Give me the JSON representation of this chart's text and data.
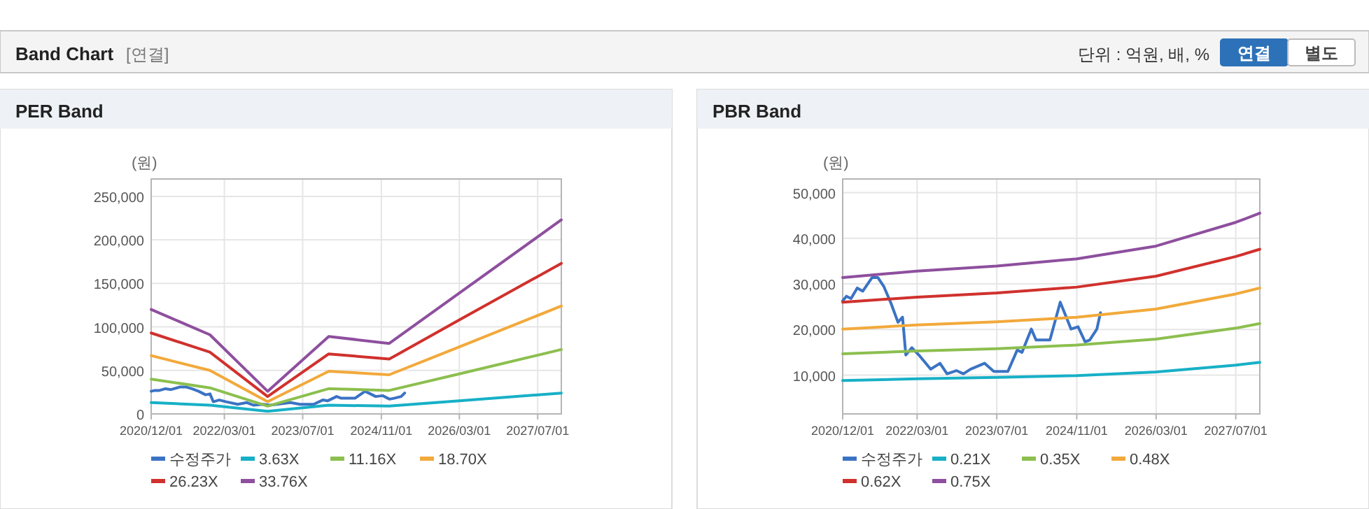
{
  "chart_data": [
    {
      "type": "other",
      "title": "Band Chart",
      "subtitle": "[연결]",
      "annotations": [
        "단위 : 억원, 배, %",
        "연결",
        "별도"
      ]
    },
    {
      "type": "line",
      "title": "PER Band",
      "ylabel": "(원)",
      "xlim": [
        "2020-12-01",
        "2027-11-25"
      ],
      "ylim": [
        0,
        270000
      ],
      "xticks": [
        {
          "value": "2020-12-01",
          "label": "2020/12/01"
        },
        {
          "value": "2022-03-01",
          "label": "2022/03/01"
        },
        {
          "value": "2023-07-01",
          "label": "2023/07/01"
        },
        {
          "value": "2024-11-01",
          "label": "2024/11/01"
        },
        {
          "value": "2026-03-01",
          "label": "2026/03/01"
        },
        {
          "value": "2027-07-01",
          "label": "2027/07/01"
        }
      ],
      "yticks": [
        0,
        {
          "value": 50000,
          "label": "50,000"
        },
        {
          "value": 100000,
          "label": "100,000"
        },
        {
          "value": 150000,
          "label": "150,000"
        },
        {
          "value": 200000,
          "label": "200,000"
        },
        {
          "value": 250000,
          "label": "250,000"
        }
      ],
      "grid": true,
      "legend": "bottom",
      "marker": "none",
      "line_style": "solid",
      "series": [
        {
          "name": "수정주가",
          "color": "#3b73c4",
          "x": [
            "2020-12-01",
            "2020-12-24",
            "2021-01-21",
            "2021-02-28",
            "2021-04-03",
            "2021-05-30",
            "2021-07-04",
            "2021-08-10",
            "2021-09-22",
            "2021-11-04",
            "2021-12-02",
            "2021-12-22",
            "2022-01-28",
            "2022-03-12",
            "2022-05-23",
            "2022-07-19",
            "2022-08-31",
            "2022-10-27",
            "2022-12-09",
            "2023-01-21",
            "2023-04-17",
            "2023-06-13",
            "2023-09-07",
            "2023-11-03",
            "2023-12-02",
            "2024-01-28",
            "2024-02-26",
            "2024-05-21",
            "2024-07-23",
            "2024-09-27",
            "2024-11-09",
            "2024-12-22",
            "2025-01-19",
            "2025-03-04",
            "2025-03-26"
          ],
          "values": [
            26000,
            27000,
            27000,
            29000,
            28000,
            31000,
            31000,
            29000,
            26000,
            22000,
            23000,
            14000,
            16000,
            14000,
            11000,
            13000,
            10000,
            11000,
            10000,
            11000,
            13000,
            11000,
            11000,
            16000,
            15000,
            20000,
            18000,
            18000,
            26000,
            20000,
            21000,
            17000,
            18000,
            20000,
            24000
          ]
        },
        {
          "name": "3.63X",
          "color": "#17b0c7",
          "x": [
            "2020-12-01",
            "2021-12-01",
            "2022-11-25",
            "2023-12-10",
            "2024-12-20",
            "2026-03-01",
            "2027-11-25"
          ],
          "values": [
            13000,
            10000,
            3000,
            10000,
            9000,
            15000,
            24000
          ]
        },
        {
          "name": "11.16X",
          "color": "#8cbf4f",
          "x": [
            "2020-12-01",
            "2021-12-01",
            "2022-11-25",
            "2023-12-10",
            "2024-12-20",
            "2026-03-01",
            "2027-11-25"
          ],
          "values": [
            40000,
            30000,
            9000,
            29000,
            27000,
            46000,
            74000
          ]
        },
        {
          "name": "18.70X",
          "color": "#f2a93b",
          "x": [
            "2020-12-01",
            "2021-12-01",
            "2022-11-25",
            "2023-12-10",
            "2024-12-20",
            "2026-03-01",
            "2027-11-25"
          ],
          "values": [
            67000,
            50000,
            14000,
            49000,
            45000,
            77000,
            124000
          ]
        },
        {
          "name": "26.23X",
          "color": "#d0312d",
          "x": [
            "2020-12-01",
            "2021-12-01",
            "2022-11-25",
            "2023-12-10",
            "2024-12-20",
            "2026-03-01",
            "2027-11-25"
          ],
          "values": [
            93000,
            71000,
            20000,
            69000,
            63000,
            108000,
            173000
          ]
        },
        {
          "name": "33.76X",
          "color": "#8e4f9e",
          "x": [
            "2020-12-01",
            "2021-12-01",
            "2022-11-25",
            "2023-12-10",
            "2024-12-20",
            "2026-03-01",
            "2027-11-25"
          ],
          "values": [
            120000,
            91000,
            26000,
            89000,
            81000,
            139000,
            223000
          ]
        }
      ]
    },
    {
      "type": "line",
      "title": "PBR Band",
      "ylabel": "(원)",
      "xlim": [
        "2020-12-01",
        "2027-11-25"
      ],
      "ylim": [
        1500,
        53000
      ],
      "xticks": [
        {
          "value": "2020-12-01",
          "label": "2020/12/01"
        },
        {
          "value": "2022-03-01",
          "label": "2022/03/01"
        },
        {
          "value": "2023-07-01",
          "label": "2023/07/01"
        },
        {
          "value": "2024-11-01",
          "label": "2024/11/01"
        },
        {
          "value": "2026-03-01",
          "label": "2026/03/01"
        },
        {
          "value": "2027-07-01",
          "label": "2027/07/01"
        }
      ],
      "yticks": [
        {
          "value": 10000,
          "label": "10,000"
        },
        {
          "value": 20000,
          "label": "20,000"
        },
        {
          "value": 30000,
          "label": "30,000"
        },
        {
          "value": 40000,
          "label": "40,000"
        },
        {
          "value": 50000,
          "label": "50,000"
        }
      ],
      "grid": true,
      "legend": "bottom",
      "marker": "none",
      "line_style": "solid",
      "series": [
        {
          "name": "수정주가",
          "color": "#3b73c4",
          "x": [
            "2020-12-01",
            "2020-12-24",
            "2021-01-21",
            "2021-02-28",
            "2021-04-03",
            "2021-05-30",
            "2021-07-04",
            "2021-08-10",
            "2021-09-22",
            "2021-11-04",
            "2021-12-02",
            "2021-12-22",
            "2022-01-28",
            "2022-03-12",
            "2022-05-23",
            "2022-07-19",
            "2022-08-31",
            "2022-10-27",
            "2022-12-09",
            "2023-01-21",
            "2023-04-17",
            "2023-06-13",
            "2023-09-07",
            "2023-11-03",
            "2023-12-02",
            "2024-01-28",
            "2024-02-26",
            "2024-05-21",
            "2024-07-23",
            "2024-09-27",
            "2024-11-09",
            "2024-12-22",
            "2025-01-19",
            "2025-03-04",
            "2025-03-26"
          ],
          "values": [
            26300,
            27300,
            26800,
            29100,
            28400,
            31400,
            31400,
            29400,
            25800,
            21600,
            22700,
            14400,
            16000,
            14400,
            11300,
            12600,
            10300,
            11000,
            10300,
            11300,
            12600,
            10800,
            10800,
            15500,
            15000,
            20100,
            17700,
            17700,
            26000,
            20100,
            20600,
            17300,
            17700,
            20100,
            23700
          ]
        },
        {
          "name": "0.21X",
          "color": "#17b0c7",
          "x": [
            "2020-12-01",
            "2022-03-01",
            "2023-07-01",
            "2024-11-01",
            "2026-03-01",
            "2027-07-01",
            "2027-11-25"
          ],
          "values": [
            8800,
            9200,
            9500,
            9900,
            10700,
            12200,
            12800
          ]
        },
        {
          "name": "0.35X",
          "color": "#8cbf4f",
          "x": [
            "2020-12-01",
            "2022-03-01",
            "2023-07-01",
            "2024-11-01",
            "2026-03-01",
            "2027-07-01",
            "2027-11-25"
          ],
          "values": [
            14700,
            15300,
            15800,
            16600,
            17900,
            20300,
            21300
          ]
        },
        {
          "name": "0.48X",
          "color": "#f2a93b",
          "x": [
            "2020-12-01",
            "2022-03-01",
            "2023-07-01",
            "2024-11-01",
            "2026-03-01",
            "2027-07-01",
            "2027-11-25"
          ],
          "values": [
            20100,
            21000,
            21700,
            22700,
            24500,
            27800,
            29100
          ]
        },
        {
          "name": "0.62X",
          "color": "#d0312d",
          "x": [
            "2020-12-01",
            "2022-03-01",
            "2023-07-01",
            "2024-11-01",
            "2026-03-01",
            "2027-07-01",
            "2027-11-25"
          ],
          "values": [
            26000,
            27100,
            28000,
            29300,
            31700,
            36000,
            37600
          ]
        },
        {
          "name": "0.75X",
          "color": "#8e4f9e",
          "x": [
            "2020-12-01",
            "2022-03-01",
            "2023-07-01",
            "2024-11-01",
            "2026-03-01",
            "2027-07-01",
            "2027-11-25"
          ],
          "values": [
            31400,
            32800,
            33900,
            35500,
            38300,
            43500,
            45500
          ]
        }
      ]
    }
  ]
}
